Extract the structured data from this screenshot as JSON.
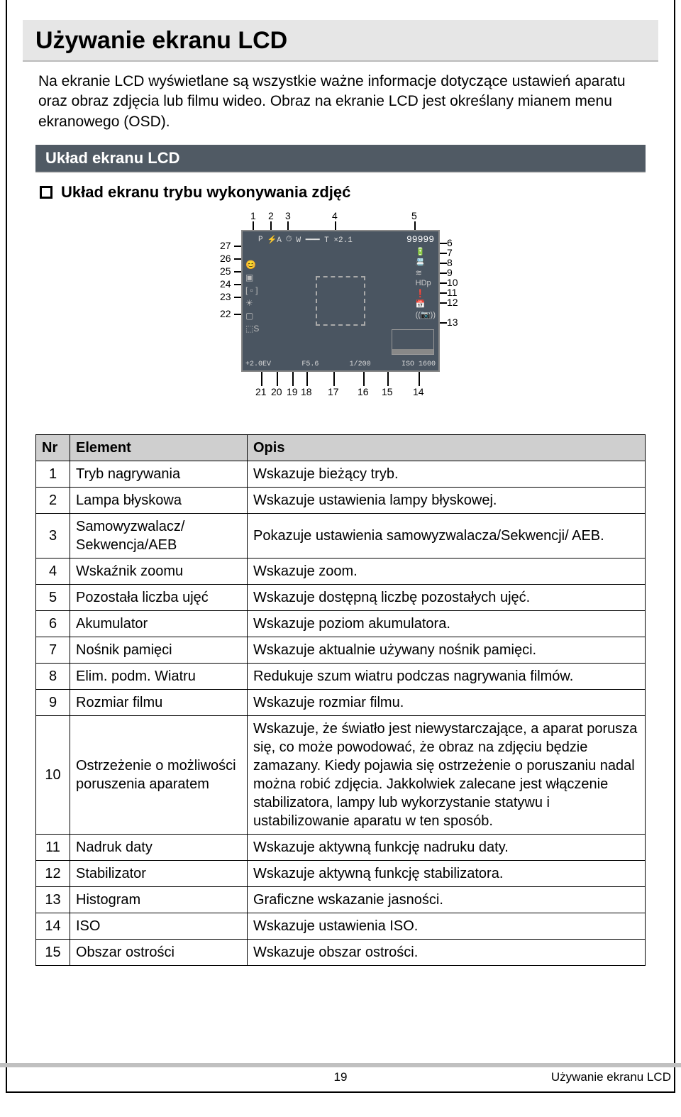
{
  "title": "Używanie ekranu LCD",
  "intro": "Na ekranie LCD wyświetlane są wszystkie ważne informacje dotyczące ustawień aparatu oraz obraz zdjęcia lub filmu wideo. Obraz na ekranie LCD jest określany mianem menu ekranowego (OSD).",
  "section": "Układ ekranu LCD",
  "subhead": "Układ ekranu trybu wykonywania zdjęć",
  "diagram": {
    "top_labels": [
      1,
      2,
      3,
      4,
      5
    ],
    "right_labels": [
      6,
      7,
      8,
      9,
      10,
      11,
      12,
      13
    ],
    "left_labels": [
      27,
      26,
      25,
      24,
      23,
      22
    ],
    "bottom_labels": [
      21,
      20,
      19,
      18,
      17,
      16,
      15,
      14
    ],
    "lcd": {
      "mode": "P",
      "flash": "⚡A",
      "timer": "⏱",
      "zoom": "W ━━━ T  ×2.1",
      "count": "99999",
      "right_icons": [
        "🔋",
        "📇",
        "≋",
        "HDp",
        "❗",
        "📅",
        "((📷))"
      ],
      "left_icons": [
        "😊",
        "▣",
        "[ ▫ ]",
        "☀",
        "▢",
        "⬚S"
      ],
      "bottom": {
        "ev": "+2.0EV",
        "ap": "F5.6",
        "sh": "1/200",
        "iso": "ISO 1600"
      }
    }
  },
  "table": {
    "headers": [
      "Nr",
      "Element",
      "Opis"
    ],
    "rows": [
      [
        "1",
        "Tryb nagrywania",
        "Wskazuje bieżący tryb."
      ],
      [
        "2",
        "Lampa błyskowa",
        "Wskazuje ustawienia lampy błyskowej."
      ],
      [
        "3",
        "Samowyzwalacz/ Sekwencja/AEB",
        "Pokazuje ustawienia samowyzwalacza/Sekwencji/ AEB."
      ],
      [
        "4",
        "Wskaźnik zoomu",
        "Wskazuje zoom."
      ],
      [
        "5",
        "Pozostała liczba ujęć",
        "Wskazuje dostępną liczbę pozostałych ujęć."
      ],
      [
        "6",
        "Akumulator",
        "Wskazuje poziom akumulatora."
      ],
      [
        "7",
        "Nośnik pamięci",
        "Wskazuje aktualnie używany nośnik pamięci."
      ],
      [
        "8",
        "Elim. podm. Wiatru",
        "Redukuje szum wiatru podczas nagrywania filmów."
      ],
      [
        "9",
        "Rozmiar filmu",
        "Wskazuje rozmiar filmu."
      ],
      [
        "10",
        "Ostrzeżenie o możliwości poruszenia aparatem",
        "Wskazuje, że światło jest niewystarczające, a aparat porusza się, co może powodować, że obraz na zdjęciu będzie zamazany. Kiedy pojawia się ostrzeżenie o poruszaniu nadal można robić zdjęcia. Jakkolwiek zalecane jest włączenie stabilizatora, lampy lub wykorzystanie statywu i ustabilizowanie aparatu w ten sposób."
      ],
      [
        "11",
        "Nadruk daty",
        "Wskazuje aktywną funkcję nadruku daty."
      ],
      [
        "12",
        "Stabilizator",
        "Wskazuje aktywną funkcję stabilizatora."
      ],
      [
        "13",
        "Histogram",
        "Graficzne wskazanie jasności."
      ],
      [
        "14",
        "ISO",
        "Wskazuje ustawienia ISO."
      ],
      [
        "15",
        "Obszar ostrości",
        "Wskazuje obszar ostrości."
      ]
    ]
  },
  "footer": {
    "page": "19",
    "title": "Używanie ekranu LCD"
  }
}
